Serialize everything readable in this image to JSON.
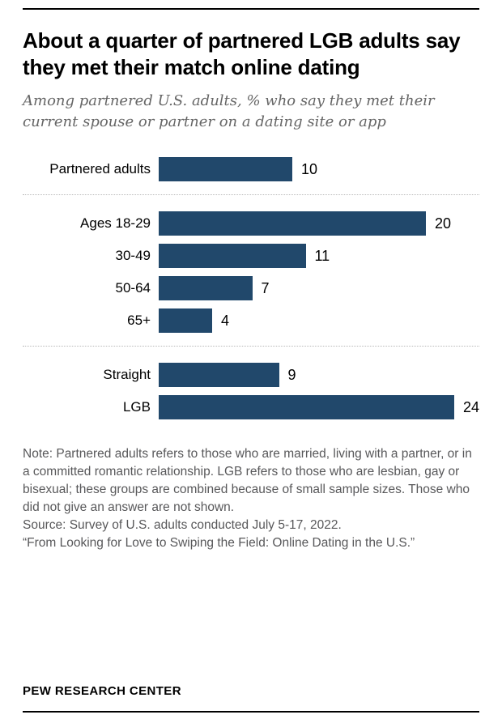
{
  "chart_data": {
    "type": "bar",
    "title": "About a quarter of partnered LGB adults say they met their match online dating",
    "subtitle": "Among partnered U.S. adults, % who say they met their current spouse or partner on a dating site or app",
    "bar_color": "#21486B",
    "xlim": [
      0,
      24
    ],
    "xlabel": "",
    "ylabel": "",
    "grid": false,
    "legend": "none",
    "groups": [
      {
        "rows": [
          {
            "label": "Partnered adults",
            "value": 10
          }
        ]
      },
      {
        "rows": [
          {
            "label": "Ages 18-29",
            "value": 20
          },
          {
            "label": "30-49",
            "value": 11
          },
          {
            "label": "50-64",
            "value": 7
          },
          {
            "label": "65+",
            "value": 4
          }
        ]
      },
      {
        "rows": [
          {
            "label": "Straight",
            "value": 9
          },
          {
            "label": "LGB",
            "value": 24
          }
        ]
      }
    ]
  },
  "notes": {
    "note": "Note: Partnered adults refers to those who are married, living with a partner, or in a committed romantic relationship. LGB refers to those who are lesbian, gay or bisexual; these groups are combined because of small sample sizes. Those who did not give an answer are not shown.",
    "source": "Source: Survey of U.S. adults conducted July 5-17, 2022.",
    "report": "“From Looking for Love to Swiping the Field: Online Dating in the U.S.”"
  },
  "footer": {
    "brand": "PEW RESEARCH CENTER"
  }
}
